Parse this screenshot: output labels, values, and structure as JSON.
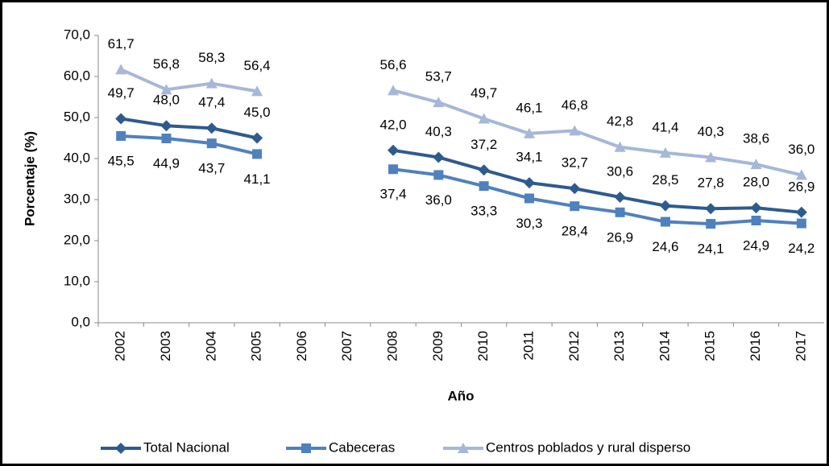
{
  "chart_data": {
    "type": "line",
    "y_label": "Porcentaje (%)",
    "x_label": "Año",
    "categories": [
      "2002",
      "2003",
      "2004",
      "2005",
      "2006",
      "2007",
      "2008",
      "2009",
      "2010",
      "2011",
      "2012",
      "2013",
      "2014",
      "2015",
      "2016",
      "2017"
    ],
    "ylim": [
      0,
      70
    ],
    "yticks": [
      {
        "value": 0,
        "label": "0,0"
      },
      {
        "value": 10,
        "label": "10,0"
      },
      {
        "value": 20,
        "label": "20,0"
      },
      {
        "value": 30,
        "label": "30,0"
      },
      {
        "value": 40,
        "label": "40,0"
      },
      {
        "value": 50,
        "label": "50,0"
      },
      {
        "value": 60,
        "label": "60,0"
      },
      {
        "value": 70,
        "label": "70,0"
      }
    ],
    "grid": false,
    "legend": "bottom",
    "series": [
      {
        "name": "Total Nacional",
        "color": "#2e5b8e",
        "marker": "diamond",
        "label_position": "above",
        "values": [
          49.7,
          48.0,
          47.4,
          45.0,
          null,
          null,
          42.0,
          40.3,
          37.2,
          34.1,
          32.7,
          30.6,
          28.5,
          27.8,
          28.0,
          26.9
        ],
        "value_labels": [
          "49,7",
          "48,0",
          "47,4",
          "45,0",
          null,
          null,
          "42,0",
          "40,3",
          "37,2",
          "34,1",
          "32,7",
          "30,6",
          "28,5",
          "27,8",
          "28,0",
          "26,9"
        ]
      },
      {
        "name": "Cabeceras",
        "color": "#4f81bd",
        "marker": "square",
        "label_position": "below",
        "values": [
          45.5,
          44.9,
          43.7,
          41.1,
          null,
          null,
          37.4,
          36.0,
          33.3,
          30.3,
          28.4,
          26.9,
          24.6,
          24.1,
          24.9,
          24.2
        ],
        "value_labels": [
          "45,5",
          "44,9",
          "43,7",
          "41,1",
          null,
          null,
          "37,4",
          "36,0",
          "33,3",
          "30,3",
          "28,4",
          "26,9",
          "24,6",
          "24,1",
          "24,9",
          "24,2"
        ]
      },
      {
        "name": "Centros poblados y rural disperso",
        "color": "#a6b7d8",
        "marker": "triangle",
        "label_position": "above",
        "values": [
          61.7,
          56.8,
          58.3,
          56.4,
          null,
          null,
          56.6,
          53.7,
          49.7,
          46.1,
          46.8,
          42.8,
          41.4,
          40.3,
          38.6,
          36.0
        ],
        "value_labels": [
          "61,7",
          "56,8",
          "58,3",
          "56,4",
          null,
          null,
          "56,6",
          "53,7",
          "49,7",
          "46,1",
          "46,8",
          "42,8",
          "41,4",
          "40,3",
          "38,6",
          "36,0"
        ]
      }
    ]
  }
}
